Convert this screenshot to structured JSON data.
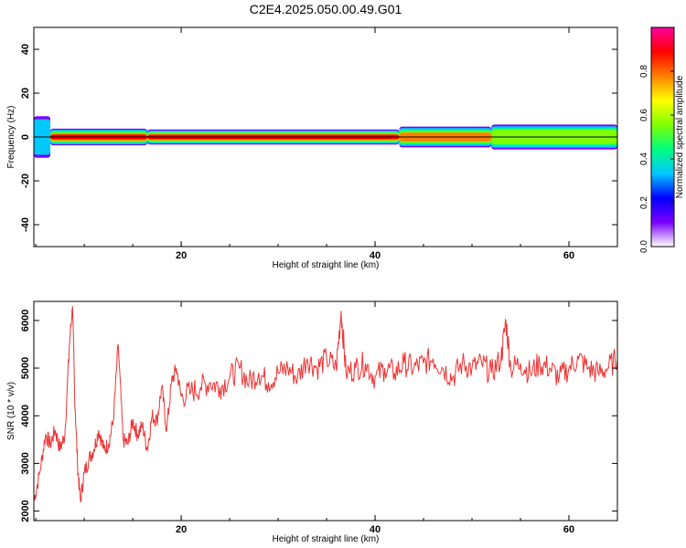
{
  "title": "C2E4.2025.050.00.49.G01",
  "chart_data": [
    {
      "type": "heatmap",
      "xlabel": "Height of straight line (km)",
      "ylabel": "Frequency (Hz)",
      "xlim": [
        4.8,
        65
      ],
      "ylim": [
        -50,
        50
      ],
      "xticks": [
        20,
        40,
        60
      ],
      "yticks": [
        40,
        20,
        0,
        -20,
        -40
      ],
      "colorbar": {
        "label": "Normalized spectral amplitude",
        "range": [
          0,
          1
        ],
        "ticks": [
          0.0,
          0.2,
          0.4,
          0.6,
          0.8
        ],
        "colormap": [
          "#ffffff",
          "#7a00ff",
          "#0000ff",
          "#00c8ff",
          "#00ff80",
          "#80ff00",
          "#ffff00",
          "#ff8000",
          "#ff0000",
          "#ff00a0"
        ]
      },
      "peak_frequency_hz": 0,
      "segments": [
        {
          "x0": 4.8,
          "x1": 6.5,
          "half_width_hz": 5,
          "amp": 0.35
        },
        {
          "x0": 6.5,
          "x1": 16.5,
          "half_width_hz": 2,
          "amp": 0.85
        },
        {
          "x0": 16.5,
          "x1": 42.5,
          "half_width_hz": 1.8,
          "amp": 0.95
        },
        {
          "x0": 42.5,
          "x1": 52,
          "half_width_hz": 2.5,
          "amp": 0.7
        },
        {
          "x0": 52,
          "x1": 65,
          "half_width_hz": 3,
          "amp": 0.6
        }
      ]
    },
    {
      "type": "line",
      "xlabel": "Height of straight line (km)",
      "ylabel": "SNR (10 * v/v)",
      "xlim": [
        4.8,
        65
      ],
      "ylim": [
        1800,
        6400
      ],
      "xticks": [
        20,
        40,
        60
      ],
      "yticks": [
        2000,
        3000,
        4000,
        5000,
        6000
      ],
      "color": "#ee3333",
      "series": [
        {
          "x": [
            4.8,
            5.4,
            6.0,
            6.5,
            7.0,
            7.5,
            8.0,
            8.5,
            8.8,
            9.0,
            9.3,
            9.6,
            10.0,
            10.5,
            11.0,
            11.5,
            12.0,
            12.5,
            13.0,
            13.5,
            14.0,
            14.5,
            15.0,
            15.5,
            16.0,
            16.5,
            17.0,
            17.5,
            18.0,
            18.5,
            19.0,
            19.5,
            20.0,
            21.0,
            22.0,
            23.0,
            24.0,
            25.0,
            26.0,
            27.0,
            28.0,
            29.0,
            30.0,
            31.0,
            32.0,
            33.0,
            34.0,
            35.0,
            36.0,
            36.5,
            37.0,
            38.0,
            39.0,
            40.0,
            41.0,
            42.0,
            43.0,
            44.0,
            45.0,
            46.0,
            47.0,
            48.0,
            49.0,
            50.0,
            51.0,
            52.0,
            53.0,
            53.5,
            54.0,
            55.0,
            56.0,
            57.0,
            58.0,
            59.0,
            60.0,
            61.0,
            62.0,
            63.0,
            64.0,
            65.0
          ],
          "values": [
            2200,
            2800,
            3600,
            3400,
            3700,
            3300,
            3600,
            5600,
            6300,
            4500,
            3000,
            2200,
            2800,
            3100,
            3300,
            3700,
            3300,
            3400,
            3900,
            5500,
            3500,
            3400,
            3900,
            3600,
            3800,
            3300,
            4000,
            3900,
            4600,
            3700,
            4700,
            5000,
            4400,
            4500,
            4600,
            4700,
            4600,
            4800,
            5000,
            4700,
            4900,
            4700,
            4900,
            5000,
            4800,
            5200,
            5000,
            5200,
            5000,
            6200,
            4900,
            5000,
            5100,
            4800,
            5000,
            4900,
            5100,
            5000,
            5100,
            5200,
            5000,
            4800,
            5100,
            5000,
            5100,
            4900,
            5200,
            6000,
            5000,
            5100,
            4900,
            5100,
            5000,
            4800,
            5000,
            5200,
            5000,
            4900,
            5000,
            5200
          ]
        }
      ]
    }
  ]
}
